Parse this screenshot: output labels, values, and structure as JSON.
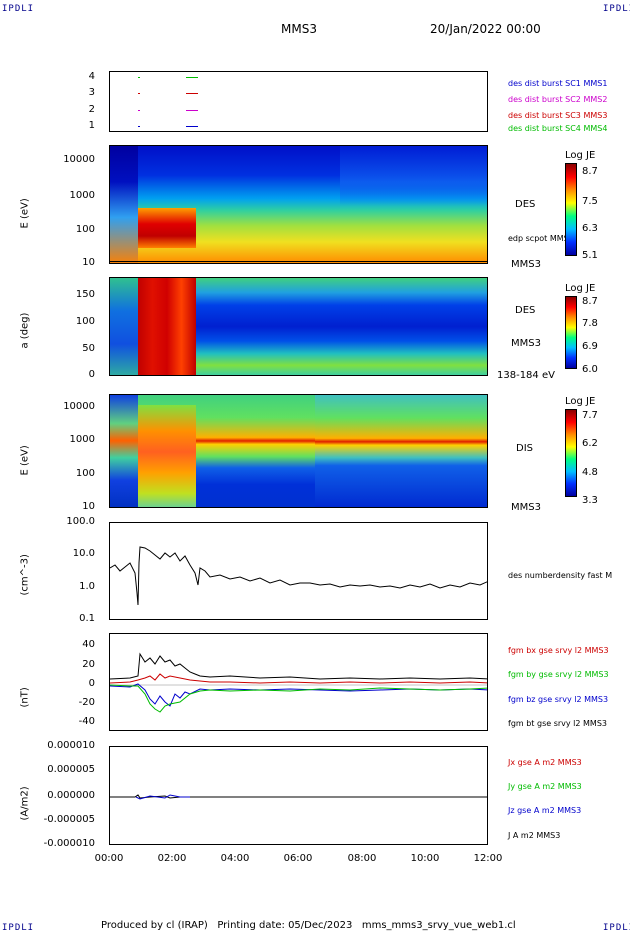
{
  "header": {
    "corner_text": "IPDLI",
    "spacecraft": "MMS3",
    "date": "20/Jan/2022 00:00"
  },
  "footer": {
    "text": "Produced by cl (IRAP)   Printing date: 05/Dec/2023   mms_mms3_srvy_vue_web1.cl"
  },
  "chart_data": [
    {
      "type": "line",
      "panel": "availability",
      "yticks": [
        "4",
        "3",
        "2",
        "1"
      ],
      "legend": [
        {
          "name": "des dist burst SC1 MMS1",
          "color": "#0000cc"
        },
        {
          "name": "des dist burst SC2 MMS2",
          "color": "#cc00cc"
        },
        {
          "name": "des dist burst SC3 MMS3",
          "color": "#cc0000"
        },
        {
          "name": "des dist burst SC4 MMS4",
          "color": "#00bb00"
        }
      ]
    },
    {
      "type": "heatmap",
      "panel": "des-energy",
      "ylabel": "E (eV)",
      "yticks": [
        "10000",
        "1000",
        "100",
        "10"
      ],
      "yscale": "log",
      "label": "DES",
      "line_label": "edp scpot MMS3",
      "sc": "MMS3",
      "colorbar": {
        "title": "Log JE",
        "ticks": [
          "8.7",
          "7.5",
          "6.3",
          "5.1"
        ]
      }
    },
    {
      "type": "heatmap",
      "panel": "des-pitch",
      "ylabel": "a (deg)",
      "yticks": [
        "150",
        "100",
        "50",
        "0"
      ],
      "label": "DES",
      "sc": "MMS3",
      "range": "138-184 eV",
      "colorbar": {
        "title": "Log JE",
        "ticks": [
          "8.7",
          "7.8",
          "6.9",
          "6.0"
        ]
      }
    },
    {
      "type": "heatmap",
      "panel": "dis-energy",
      "ylabel": "E (eV)",
      "yticks": [
        "10000",
        "1000",
        "100",
        "10"
      ],
      "yscale": "log",
      "label": "DIS",
      "sc": "MMS3",
      "colorbar": {
        "title": "Log JE",
        "ticks": [
          "7.7",
          "6.2",
          "4.8",
          "3.3"
        ]
      }
    },
    {
      "type": "line",
      "panel": "density",
      "ylabel": "(cm^-3)",
      "yscale": "log",
      "yticks": [
        "100.0",
        "10.0",
        "1.0",
        "0.1"
      ],
      "series": [
        {
          "name": "des numberdensity fast M",
          "color": "#000000"
        }
      ]
    },
    {
      "type": "line",
      "panel": "bfield",
      "ylabel": "(nT)",
      "yticks": [
        "40",
        "20",
        "0",
        "-20",
        "-40"
      ],
      "ylim": [
        -50,
        50
      ],
      "series": [
        {
          "name": "fgm bx gse srvy l2 MMS3",
          "color": "#cc0000"
        },
        {
          "name": "fgm by gse srvy l2 MMS3",
          "color": "#00bb00"
        },
        {
          "name": "fgm bz gse srvy l2 MMS3",
          "color": "#0000cc"
        },
        {
          "name": "fgm bt gse srvy l2 MMS3",
          "color": "#000000"
        }
      ]
    },
    {
      "type": "line",
      "panel": "current",
      "ylabel": "(A/m2)",
      "yticks": [
        "0.000010",
        "0.000005",
        "0.000000",
        "-0.000005",
        "-0.000010"
      ],
      "ylim": [
        -1e-05,
        1e-05
      ],
      "series": [
        {
          "name": "Jx gse A m2 MMS3",
          "color": "#cc0000"
        },
        {
          "name": "Jy gse A m2 MMS3",
          "color": "#00bb00"
        },
        {
          "name": "Jz gse A m2 MMS3",
          "color": "#0000cc"
        },
        {
          "name": "J A m2 MMS3",
          "color": "#000000"
        }
      ]
    }
  ],
  "xaxis": {
    "ticks": [
      "00:00",
      "02:00",
      "04:00",
      "06:00",
      "08:00",
      "10:00",
      "12:00"
    ]
  }
}
